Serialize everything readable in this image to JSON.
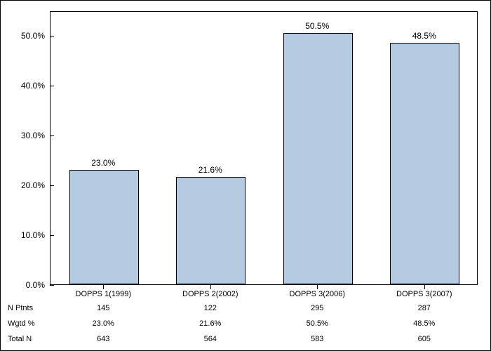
{
  "chart": {
    "type": "bar",
    "categories": [
      "DOPPS 1(1999)",
      "DOPPS 2(2002)",
      "DOPPS 3(2006)",
      "DOPPS 3(2007)"
    ],
    "values": [
      23.0,
      21.6,
      50.5,
      48.5
    ],
    "value_labels": [
      "23.0%",
      "21.6%",
      "50.5%",
      "48.5%"
    ],
    "bar_color": "#b5cbe2",
    "bar_border_color": "#000000",
    "background_color": "#ffffff",
    "border_color": "#000000",
    "ylim": [
      0,
      55
    ],
    "ytick_step": 10,
    "yticks": [
      0,
      10,
      20,
      30,
      40,
      50
    ],
    "ytick_labels": [
      "0.0%",
      "10.0%",
      "20.0%",
      "30.0%",
      "40.0%",
      "50.0%"
    ],
    "bar_width_ratio": 0.65,
    "label_fontsize": 12,
    "category_fontsize": 11,
    "table_fontsize": 11
  },
  "table": {
    "rows": [
      {
        "label": "N Ptnts",
        "values": [
          "145",
          "122",
          "295",
          "287"
        ]
      },
      {
        "label": "Wgtd %",
        "values": [
          "23.0%",
          "21.6%",
          "50.5%",
          "48.5%"
        ]
      },
      {
        "label": "Total N",
        "values": [
          "643",
          "564",
          "583",
          "605"
        ]
      }
    ]
  }
}
